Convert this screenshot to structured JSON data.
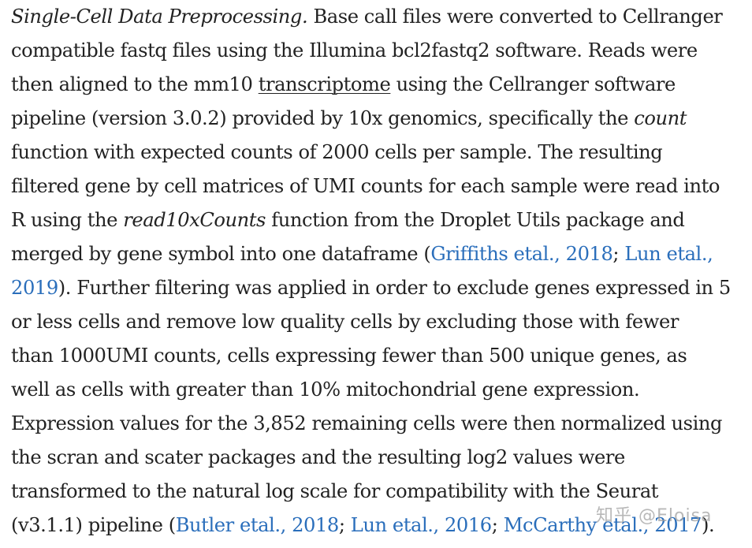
{
  "paragraph": {
    "l1": {
      "a": "Single-Cell Data Preprocessing.",
      "b": " Base call files were converted to Cellranger"
    },
    "l2": {
      "a": "compatible fastq files using the Illumina bcl2fastq2 software. Reads were"
    },
    "l3": {
      "a": "then aligned to the mm10 ",
      "b": "transcriptome",
      "c": " using the Cellranger software"
    },
    "l4": {
      "a": "pipeline (version 3.0.2) provided by 10x genomics, specifically the ",
      "b": "count"
    },
    "l5": {
      "a": "function with expected counts of 2000 cells per sample. The resulting"
    },
    "l6": {
      "a": "filtered gene by cell matrices of UMI counts for each sample were read into"
    },
    "l7": {
      "a": "R using the ",
      "b": "read10xCounts",
      "c": " function from the Droplet Utils package and"
    },
    "l8": {
      "a": "merged by gene symbol into one dataframe (",
      "b": "Griffiths etal., 2018",
      "c": "; ",
      "d": "Lun etal.,"
    },
    "l9": {
      "a": "2019",
      "b": "). Further filtering was applied in order to exclude genes expressed in 5"
    },
    "l10": {
      "a": "or less cells and remove low quality cells by excluding those with fewer"
    },
    "l11": {
      "a": "than 1000UMI counts, cells expressing fewer than 500 unique genes, as"
    },
    "l12": {
      "a": "well as cells with greater than 10% mitochondrial gene expression."
    },
    "l13": {
      "a": "Expression values for the 3,852 remaining cells were then normalized using"
    },
    "l14": {
      "a": "the scran and scater packages and the resulting log2 values were"
    },
    "l15": {
      "a": "transformed to the natural log scale for compatibility with the Seurat"
    },
    "l16": {
      "a": "(v3.1.1) pipeline (",
      "b": "Butler etal., 2018",
      "c": "; ",
      "d": "Lun etal., 2016",
      "e": "; ",
      "f": "McCarthy etal., 2017",
      "g": ")."
    }
  },
  "watermark": {
    "text": "知乎 @Eloisa"
  },
  "colors": {
    "text": "#222222",
    "link": "#2a6ebb",
    "background": "#ffffff"
  }
}
